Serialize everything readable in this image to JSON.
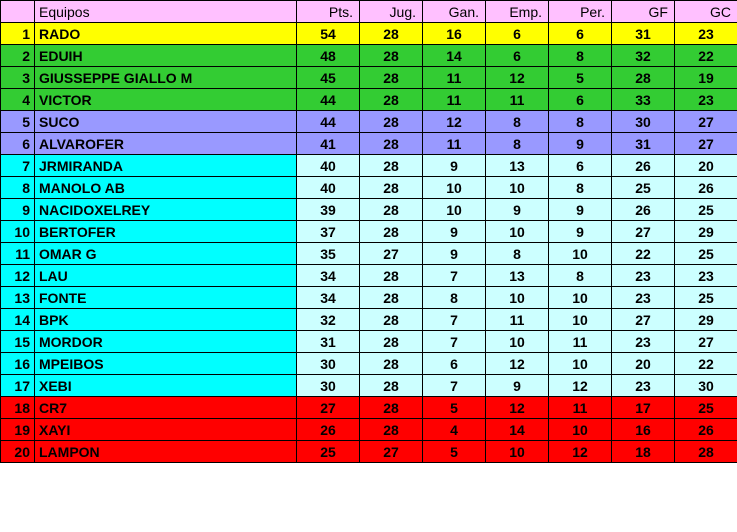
{
  "colors": {
    "header_bg": "#ffc0ff",
    "tiers": {
      "yellow": "#ffff00",
      "green": "#33cc33",
      "purple": "#9999ff",
      "cyan_rank": "#00ffff",
      "cyan_stat": "#ccffff",
      "red": "#ff0000"
    }
  },
  "headers": {
    "rank": "",
    "team": "Equipos",
    "pts": "Pts.",
    "jug": "Jug.",
    "gan": "Gan.",
    "emp": "Emp.",
    "per": "Per.",
    "gf": "GF",
    "gc": "GC"
  },
  "rows": [
    {
      "rank": 1,
      "team": "RADO",
      "pts": 54,
      "jug": 28,
      "gan": 16,
      "emp": 6,
      "per": 6,
      "gf": 31,
      "gc": 23,
      "tier": "yellow"
    },
    {
      "rank": 2,
      "team": "EDUIH",
      "pts": 48,
      "jug": 28,
      "gan": 14,
      "emp": 6,
      "per": 8,
      "gf": 32,
      "gc": 22,
      "tier": "green"
    },
    {
      "rank": 3,
      "team": "GIUSSEPPE GIALLO M",
      "pts": 45,
      "jug": 28,
      "gan": 11,
      "emp": 12,
      "per": 5,
      "gf": 28,
      "gc": 19,
      "tier": "green"
    },
    {
      "rank": 4,
      "team": "VICTOR",
      "pts": 44,
      "jug": 28,
      "gan": 11,
      "emp": 11,
      "per": 6,
      "gf": 33,
      "gc": 23,
      "tier": "green"
    },
    {
      "rank": 5,
      "team": "SUCO",
      "pts": 44,
      "jug": 28,
      "gan": 12,
      "emp": 8,
      "per": 8,
      "gf": 30,
      "gc": 27,
      "tier": "purple"
    },
    {
      "rank": 6,
      "team": "ALVAROFER",
      "pts": 41,
      "jug": 28,
      "gan": 11,
      "emp": 8,
      "per": 9,
      "gf": 31,
      "gc": 27,
      "tier": "purple"
    },
    {
      "rank": 7,
      "team": "JRMIRANDA",
      "pts": 40,
      "jug": 28,
      "gan": 9,
      "emp": 13,
      "per": 6,
      "gf": 26,
      "gc": 20,
      "tier": "cyan"
    },
    {
      "rank": 8,
      "team": "MANOLO AB",
      "pts": 40,
      "jug": 28,
      "gan": 10,
      "emp": 10,
      "per": 8,
      "gf": 25,
      "gc": 26,
      "tier": "cyan"
    },
    {
      "rank": 9,
      "team": "NACIDOXELREY",
      "pts": 39,
      "jug": 28,
      "gan": 10,
      "emp": 9,
      "per": 9,
      "gf": 26,
      "gc": 25,
      "tier": "cyan"
    },
    {
      "rank": 10,
      "team": "BERTOFER",
      "pts": 37,
      "jug": 28,
      "gan": 9,
      "emp": 10,
      "per": 9,
      "gf": 27,
      "gc": 29,
      "tier": "cyan"
    },
    {
      "rank": 11,
      "team": "OMAR G",
      "pts": 35,
      "jug": 27,
      "gan": 9,
      "emp": 8,
      "per": 10,
      "gf": 22,
      "gc": 25,
      "tier": "cyan"
    },
    {
      "rank": 12,
      "team": "LAU",
      "pts": 34,
      "jug": 28,
      "gan": 7,
      "emp": 13,
      "per": 8,
      "gf": 23,
      "gc": 23,
      "tier": "cyan"
    },
    {
      "rank": 13,
      "team": "FONTE",
      "pts": 34,
      "jug": 28,
      "gan": 8,
      "emp": 10,
      "per": 10,
      "gf": 23,
      "gc": 25,
      "tier": "cyan"
    },
    {
      "rank": 14,
      "team": "BPK",
      "pts": 32,
      "jug": 28,
      "gan": 7,
      "emp": 11,
      "per": 10,
      "gf": 27,
      "gc": 29,
      "tier": "cyan"
    },
    {
      "rank": 15,
      "team": "MORDOR",
      "pts": 31,
      "jug": 28,
      "gan": 7,
      "emp": 10,
      "per": 11,
      "gf": 23,
      "gc": 27,
      "tier": "cyan"
    },
    {
      "rank": 16,
      "team": "MPEIBOS",
      "pts": 30,
      "jug": 28,
      "gan": 6,
      "emp": 12,
      "per": 10,
      "gf": 20,
      "gc": 22,
      "tier": "cyan"
    },
    {
      "rank": 17,
      "team": "XEBI",
      "pts": 30,
      "jug": 28,
      "gan": 7,
      "emp": 9,
      "per": 12,
      "gf": 23,
      "gc": 30,
      "tier": "cyan"
    },
    {
      "rank": 18,
      "team": "CR7",
      "pts": 27,
      "jug": 28,
      "gan": 5,
      "emp": 12,
      "per": 11,
      "gf": 17,
      "gc": 25,
      "tier": "red"
    },
    {
      "rank": 19,
      "team": "XAYI",
      "pts": 26,
      "jug": 28,
      "gan": 4,
      "emp": 14,
      "per": 10,
      "gf": 16,
      "gc": 26,
      "tier": "red"
    },
    {
      "rank": 20,
      "team": "LAMPON",
      "pts": 25,
      "jug": 27,
      "gan": 5,
      "emp": 10,
      "per": 12,
      "gf": 18,
      "gc": 28,
      "tier": "red"
    }
  ]
}
